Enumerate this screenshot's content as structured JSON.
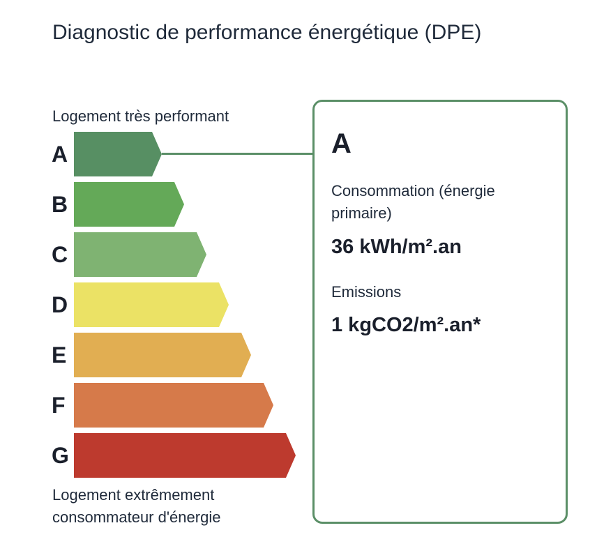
{
  "title": "Diagnostic de performance énergétique (DPE)",
  "scale": {
    "top_label": "Logement très performant",
    "bottom_label": "Logement extrêmement consommateur d'énergie",
    "classes": [
      {
        "letter": "A",
        "color": "#578f63"
      },
      {
        "letter": "B",
        "color": "#64a958"
      },
      {
        "letter": "C",
        "color": "#7fb372"
      },
      {
        "letter": "D",
        "color": "#ebe265"
      },
      {
        "letter": "E",
        "color": "#e1ae52"
      },
      {
        "letter": "F",
        "color": "#d67a4a"
      },
      {
        "letter": "G",
        "color": "#bd3a2e"
      }
    ],
    "selected": "A"
  },
  "card": {
    "class_letter": "A",
    "consumption_label": "Consommation (énergie primaire)",
    "consumption_value": "36 kWh/m².an",
    "emissions_label": "Emissions",
    "emissions_value": "1 kgCO2/m².an*",
    "border_color": "#5b8f67"
  }
}
